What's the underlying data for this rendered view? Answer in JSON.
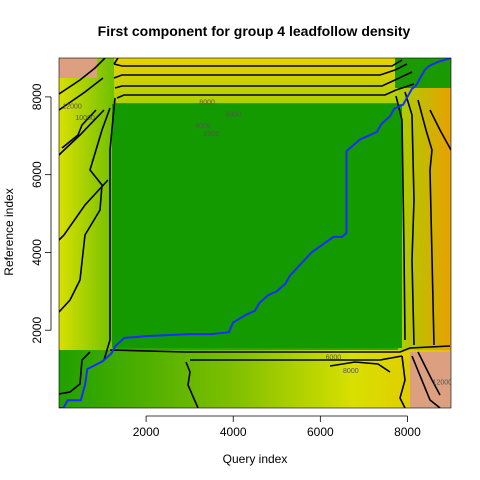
{
  "chart_data": {
    "type": "heatmap",
    "title": "First component for group 4 leadfollow density",
    "xlabel": "Query index",
    "ylabel": "Reference index",
    "xlim": [
      0,
      9000
    ],
    "ylim": [
      0,
      9000
    ],
    "x_ticks": [
      2000,
      4000,
      6000,
      8000
    ],
    "y_ticks": [
      2000,
      4000,
      6000,
      8000
    ],
    "colors": {
      "low": "#0f9a00",
      "mid": "#6fbf00",
      "high": "#e8e000",
      "peak": "#e0a080",
      "path": "#1a2cff",
      "contour": "#000000"
    },
    "contour_levels": [
      2000,
      4000,
      6000,
      8000,
      10000,
      12000
    ],
    "contour_labels": [
      {
        "text": "2000",
        "x": 3500,
        "y": 7000
      },
      {
        "text": "4000",
        "x": 3300,
        "y": 7200
      },
      {
        "text": "6000",
        "x": 4000,
        "y": 7500
      },
      {
        "text": "8000",
        "x": 3400,
        "y": 7800
      },
      {
        "text": "10000",
        "x": 600,
        "y": 7400
      },
      {
        "text": "12000",
        "x": 300,
        "y": 7700
      },
      {
        "text": "6000",
        "x": 6300,
        "y": 1250
      },
      {
        "text": "8000",
        "x": 6700,
        "y": 900
      },
      {
        "text": "12000",
        "x": 8800,
        "y": 600
      }
    ],
    "warping_path": {
      "name": "",
      "x": [
        0,
        100,
        200,
        500,
        600,
        650,
        1000,
        1200,
        1300,
        1500,
        2000,
        3000,
        3500,
        3900,
        4000,
        4300,
        4500,
        4600,
        4800,
        5000,
        5200,
        5300,
        5800,
        6300,
        6500,
        6600,
        6600,
        6700,
        6800,
        6900,
        7100,
        7300,
        7400,
        7600,
        7700,
        7900,
        8000,
        8100,
        8200,
        8300,
        8400,
        8500,
        8700,
        9000
      ],
      "y": [
        0,
        0,
        200,
        200,
        600,
        1000,
        1200,
        1400,
        1600,
        1800,
        1850,
        1900,
        1900,
        1950,
        2200,
        2400,
        2500,
        2700,
        2900,
        3000,
        3200,
        3400,
        4000,
        4400,
        4400,
        4500,
        6600,
        6700,
        6800,
        6900,
        7000,
        7100,
        7300,
        7500,
        7700,
        7800,
        8000,
        8200,
        8300,
        8500,
        8700,
        8800,
        8900,
        9000
      ]
    },
    "legend": "none",
    "grid": false
  }
}
